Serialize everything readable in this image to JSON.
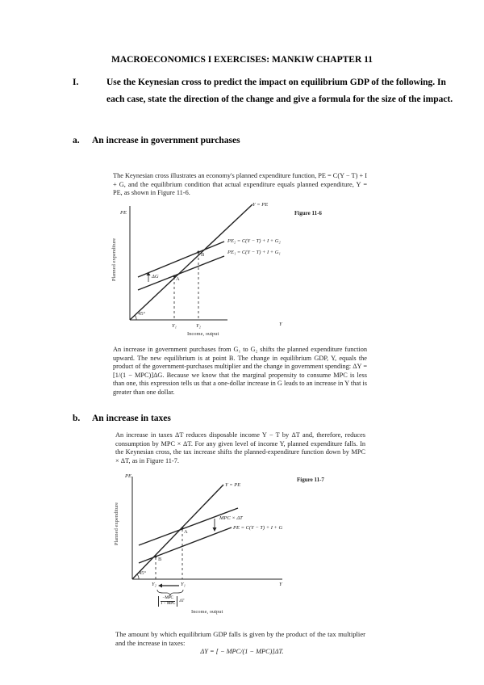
{
  "title": "MACROECONOMICS I EXERCISES: MANKIW CHAPTER 11",
  "question": {
    "number": "I.",
    "text_line1": "Use the Keynesian cross to predict the impact on equilibrium GDP of the following. In",
    "text_line2": "each case, state the direction of the change and give a formula for the size of the impact."
  },
  "part_a": {
    "letter": "a.",
    "heading": "An increase in government purchases",
    "intro": "The Keynesian cross illustrates an economy's planned expenditure function, PE = C(Y − T) + I + G, and the equilibrium condition that actual expenditure equals planned expenditure, Y = PE, as shown in Figure 11-6.",
    "figure": {
      "number": "Figure 11-6",
      "y_axis_top": "PE",
      "y_axis_label": "Planned expenditure",
      "x_axis_label": "Income, output",
      "x_axis_end": "Y",
      "line_45": "Y = PE",
      "line_pe2": "PE₂ = C(Y − T) + I + G₂",
      "line_pe1": "PE₁ = C(Y − T) + I + G₁",
      "shift": "ΔG",
      "point_a": "A",
      "point_b": "B",
      "angle": "45°",
      "y1": "Y₁",
      "y2": "Y₂"
    },
    "explanation": "An increase in government purchases from G₁ to G₂ shifts the planned expenditure function upward. The new equilibrium is at point B. The change in equilibrium GDP, Y, equals the product of the government-purchases multiplier and the change in government spending: ΔY = [1/(1 − MPC)]ΔG. Because we know that the marginal propensity to consume MPC is less than one, this expression tells us that a one-dollar increase in G leads to an increase in Y that is greater than one dollar."
  },
  "part_b": {
    "letter": "b.",
    "heading": "An increase in taxes",
    "intro": "An increase in taxes ΔT reduces disposable income Y − T by ΔT and, therefore, reduces consumption by MPC × ΔT. For any given level of income Y, planned expenditure falls. In the Keynesian cross, the tax increase shifts the planned-expenditure function down by MPC × ΔT, as in Figure 11-7.",
    "figure": {
      "number": "Figure 11-7",
      "y_axis_top": "PE",
      "y_axis_label": "Planned expenditure",
      "x_axis_label": "Income, output",
      "x_axis_end": "Y",
      "line_45": "Y = PE",
      "shift": "MPC × ΔT",
      "line_pe": "PE = C(Y − T) + I + G",
      "point_a": "A",
      "point_b": "B",
      "angle": "45°",
      "y1": "Y₁",
      "y2": "Y₂",
      "mult_num": "−MPC",
      "mult_den": "1 − MPC",
      "mult_suffix": "ΔT"
    },
    "conclusion": "The amount by which equilibrium GDP falls is given by the product of the tax multiplier and the increase in taxes:",
    "formula": "ΔY = [ − MPC/(1 − MPC)]ΔT."
  }
}
